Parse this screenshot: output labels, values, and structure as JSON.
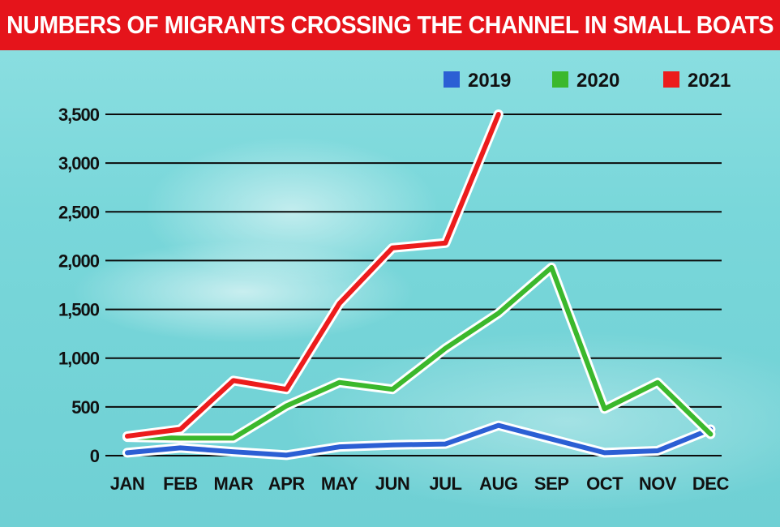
{
  "title": "NUMBERS OF MIGRANTS CROSSING THE CHANNEL IN SMALL BOATS",
  "colors": {
    "banner": "#e5141b",
    "s2019": "#2b5fd4",
    "s2020": "#3bb82c",
    "s2021": "#ec1c1c"
  },
  "chart_data": {
    "type": "line",
    "title": "NUMBERS OF MIGRANTS CROSSING THE CHANNEL IN SMALL BOATS",
    "xlabel": "",
    "ylabel": "",
    "ylim": [
      0,
      3500
    ],
    "grid": true,
    "legend_position": "top-right",
    "categories": [
      "JAN",
      "FEB",
      "MAR",
      "APR",
      "MAY",
      "JUN",
      "JUL",
      "AUG",
      "SEP",
      "OCT",
      "NOV",
      "DEC"
    ],
    "y_ticks": [
      0,
      500,
      1000,
      1500,
      2000,
      2500,
      3000,
      3500
    ],
    "y_tick_labels": [
      "0",
      "500",
      "1,000",
      "1,500",
      "2,000",
      "2,500",
      "3,000",
      "3,500"
    ],
    "series": [
      {
        "name": "2019",
        "color": "#2b5fd4",
        "values": [
          30,
          80,
          40,
          5,
          90,
          110,
          120,
          310,
          170,
          30,
          50,
          270
        ]
      },
      {
        "name": "2020",
        "color": "#3bb82c",
        "values": [
          190,
          180,
          180,
          510,
          750,
          680,
          1100,
          1460,
          1930,
          480,
          750,
          220
        ]
      },
      {
        "name": "2021",
        "color": "#ec1c1c",
        "values": [
          200,
          270,
          770,
          680,
          1560,
          2130,
          2180,
          3500,
          null,
          null,
          null,
          null
        ]
      }
    ]
  }
}
